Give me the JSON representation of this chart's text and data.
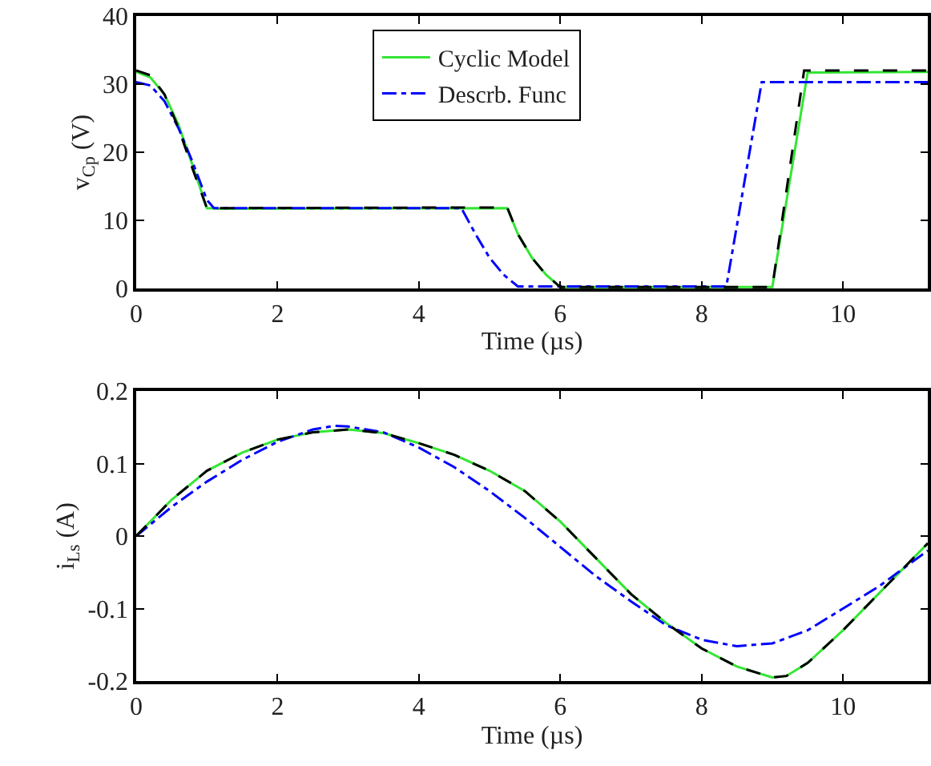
{
  "chart_data": [
    {
      "type": "line",
      "xlabel": "Time (µs)",
      "ylabel": "v$_{C}$$_{p}$ (V)",
      "xlim": [
        0,
        11.2
      ],
      "ylim": [
        0,
        40
      ],
      "xticks": [
        0,
        2,
        4,
        6,
        8,
        10
      ],
      "yticks": [
        0,
        10,
        20,
        30,
        40
      ],
      "grid": false,
      "legend": "top",
      "marker": "none",
      "series": [
        {
          "name": "Cyclic Model",
          "color": "#33e633",
          "line_style": "solid",
          "x": [
            0,
            0.2,
            0.4,
            0.6,
            0.8,
            1.0,
            1.2,
            5.25,
            5.4,
            5.6,
            5.8,
            6.0,
            9.0,
            9.5,
            11.2
          ],
          "values": [
            31.8,
            31,
            28.5,
            24,
            18,
            11.8,
            11.7,
            11.8,
            8,
            4.5,
            2,
            0.2,
            0.2,
            31.7,
            31.8
          ]
        },
        {
          "name": "Descrb. Func",
          "color": "#0000ff",
          "line_style": "dashdot",
          "x": [
            0,
            0.2,
            0.4,
            0.6,
            0.8,
            1.0,
            1.1,
            4.6,
            4.8,
            5.0,
            5.2,
            5.4,
            8.35,
            8.85,
            11.2
          ],
          "values": [
            30.3,
            29.8,
            27.5,
            23.5,
            18.5,
            13,
            11.8,
            11.8,
            8,
            4.5,
            2,
            0.3,
            0.3,
            30.3,
            30.3
          ]
        },
        {
          "color": "#000000",
          "line_style": "dashed",
          "x": [
            0,
            0.2,
            0.4,
            0.6,
            0.8,
            1.0,
            1.2,
            5.25,
            5.4,
            5.6,
            5.8,
            6.0,
            9.0,
            9.45,
            11.2
          ],
          "values": [
            32,
            31.3,
            28.5,
            23.5,
            17.5,
            11.8,
            11.8,
            11.9,
            8,
            4.5,
            2,
            0.2,
            0.2,
            32,
            32
          ]
        }
      ]
    },
    {
      "type": "line",
      "xlabel": "Time (µs)",
      "ylabel": "i$_{L}$$_{s}$ (A)",
      "xlim": [
        0,
        11.2
      ],
      "ylim": [
        -0.2,
        0.2
      ],
      "xticks": [
        0,
        2,
        4,
        6,
        8,
        10
      ],
      "yticks": [
        {
          "value": -0.2,
          "label": "-0.2"
        },
        {
          "value": -0.1,
          "label": "-0.1"
        },
        0,
        0.1,
        0.2
      ],
      "grid": false,
      "legend": false,
      "marker": "none",
      "series": [
        {
          "color": "#33e633",
          "line_style": "solid",
          "x": [
            0,
            0.5,
            1,
            1.5,
            2,
            2.5,
            3,
            3.5,
            4,
            4.5,
            5,
            5.5,
            6,
            6.5,
            7,
            7.5,
            8,
            8.5,
            9,
            9.2,
            9.5,
            10,
            10.5,
            11.2
          ],
          "values": [
            0,
            0.05,
            0.09,
            0.115,
            0.133,
            0.143,
            0.147,
            0.142,
            0.128,
            0.112,
            0.09,
            0.062,
            0.02,
            -0.03,
            -0.08,
            -0.12,
            -0.155,
            -0.18,
            -0.195,
            -0.193,
            -0.175,
            -0.13,
            -0.08,
            -0.01
          ]
        },
        {
          "color": "#0000ff",
          "line_style": "dashdot",
          "x": [
            0,
            0.5,
            1,
            1.5,
            2,
            2.5,
            2.8,
            3,
            3.5,
            4,
            4.5,
            5,
            5.5,
            6,
            6.5,
            7,
            7.5,
            8,
            8.5,
            9,
            9.5,
            10,
            10.5,
            11.2
          ],
          "values": [
            0,
            0.04,
            0.075,
            0.105,
            0.13,
            0.147,
            0.152,
            0.151,
            0.143,
            0.122,
            0.095,
            0.062,
            0.025,
            -0.015,
            -0.055,
            -0.09,
            -0.123,
            -0.143,
            -0.152,
            -0.148,
            -0.13,
            -0.1,
            -0.07,
            -0.02
          ]
        },
        {
          "color": "#000000",
          "line_style": "dashed",
          "x": [
            0,
            0.5,
            1,
            1.5,
            2,
            2.5,
            3,
            3.5,
            4,
            4.5,
            5,
            5.5,
            6,
            6.5,
            7,
            7.5,
            8,
            8.5,
            9,
            9.2,
            9.5,
            10,
            10.5,
            11.2
          ],
          "values": [
            0,
            0.05,
            0.09,
            0.115,
            0.133,
            0.143,
            0.147,
            0.142,
            0.128,
            0.112,
            0.09,
            0.062,
            0.02,
            -0.03,
            -0.08,
            -0.12,
            -0.155,
            -0.18,
            -0.195,
            -0.193,
            -0.175,
            -0.13,
            -0.08,
            -0.01
          ]
        }
      ]
    }
  ]
}
